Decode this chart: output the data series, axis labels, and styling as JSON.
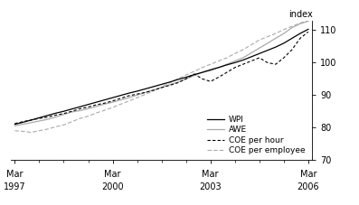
{
  "ylabel_right": "index",
  "ylim": [
    70,
    113
  ],
  "yticks": [
    70,
    80,
    90,
    100,
    110
  ],
  "x_major_labels_top": [
    "Mar",
    "Mar",
    "Mar",
    "Mar"
  ],
  "x_major_labels_bottom": [
    "1997",
    "2000",
    "2003",
    "2006"
  ],
  "WPI_color": "#000000",
  "AWE_color": "#aaaaaa",
  "COE_hour_color": "#000000",
  "COE_employee_color": "#aaaaaa",
  "legend_labels": [
    "WPI",
    "AWE",
    "COE per hour",
    "COE per employee"
  ],
  "background_color": "#ffffff",
  "wpi": [
    81.0,
    81.6,
    82.3,
    83.0,
    83.7,
    84.4,
    85.0,
    85.7,
    86.4,
    87.1,
    87.8,
    88.5,
    89.2,
    89.9,
    90.6,
    91.2,
    91.9,
    92.6,
    93.3,
    94.0,
    94.8,
    95.5,
    96.3,
    97.0,
    97.8,
    98.5,
    99.3,
    100.0,
    100.8,
    101.8,
    102.8,
    103.8,
    104.8,
    106.0,
    107.5,
    109.0,
    110.3
  ],
  "awe": [
    80.5,
    81.0,
    81.5,
    82.0,
    82.5,
    83.2,
    84.0,
    84.8,
    85.2,
    85.8,
    86.5,
    87.2,
    87.8,
    88.5,
    89.2,
    90.0,
    90.8,
    91.5,
    92.3,
    93.2,
    94.0,
    95.0,
    96.0,
    97.0,
    97.5,
    98.5,
    99.5,
    100.5,
    101.5,
    103.0,
    104.5,
    106.0,
    107.5,
    109.0,
    110.8,
    112.0,
    112.8
  ],
  "coe_hour": [
    81.2,
    81.8,
    82.3,
    82.8,
    83.2,
    83.8,
    84.3,
    85.0,
    85.8,
    86.3,
    87.0,
    87.5,
    88.2,
    89.0,
    89.8,
    90.3,
    90.8,
    91.5,
    92.3,
    93.0,
    93.8,
    95.0,
    96.5,
    95.0,
    94.2,
    95.5,
    97.0,
    98.5,
    99.5,
    100.5,
    101.5,
    100.0,
    99.5,
    101.5,
    104.0,
    107.5,
    109.5
  ],
  "coe_emp": [
    79.0,
    78.8,
    78.5,
    79.0,
    79.5,
    80.2,
    80.8,
    81.8,
    82.8,
    83.5,
    84.5,
    85.3,
    86.2,
    87.2,
    88.2,
    89.2,
    90.2,
    91.3,
    92.5,
    93.8,
    95.0,
    96.2,
    97.3,
    98.5,
    99.5,
    100.5,
    101.5,
    102.8,
    104.0,
    105.5,
    107.0,
    108.0,
    109.0,
    110.2,
    111.2,
    112.2,
    113.0
  ]
}
